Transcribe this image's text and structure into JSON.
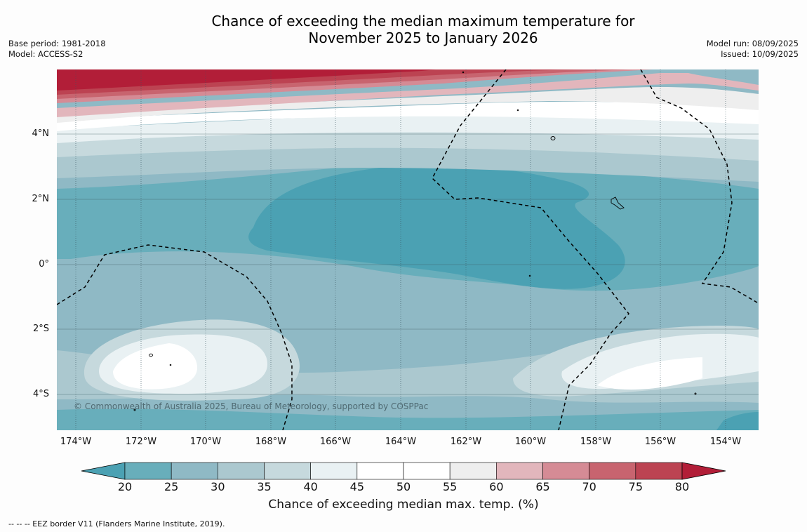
{
  "title_line1": "Chance of exceeding the median maximum temperature for",
  "title_line2": "November 2025 to January 2026",
  "base_period": "Base period: 1981-2018",
  "model": "Model: ACCESS-S2",
  "model_run": "Model run: 08/09/2025",
  "issued": "Issued: 10/09/2025",
  "copyright": "© Commonwealth of Australia 2025, Bureau of Meteorology, supported by COSPPac",
  "lat_labels": [
    "4°N",
    "2°N",
    "0°",
    "2°S",
    "4°S"
  ],
  "lon_labels": [
    "174°W",
    "172°W",
    "170°W",
    "168°W",
    "166°W",
    "164°W",
    "162°W",
    "160°W",
    "158°W",
    "156°W",
    "154°W"
  ],
  "colorbar": {
    "ticks": [
      "20",
      "25",
      "30",
      "35",
      "40",
      "45",
      "50",
      "55",
      "60",
      "65",
      "70",
      "75",
      "80"
    ],
    "colors": [
      "#68aebb",
      "#8fb9c5",
      "#abc8cf",
      "#c6d9dd",
      "#e9f1f3",
      "#ffffff",
      "#ffffff",
      "#eeeeee",
      "#e2b6bc",
      "#d58b95",
      "#c8646f",
      "#bc4352"
    ],
    "under_color": "#4ba1b3",
    "over_color": "#b21e38",
    "label": "Chance of exceeding median max. temp. (%)"
  },
  "footer": "--  --  -- EEZ border V11 (Flanders Marine Institute, 2019)."
}
